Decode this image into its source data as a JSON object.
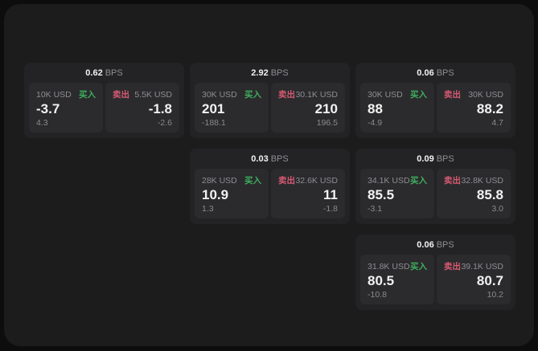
{
  "colors": {
    "buy": "#3fae5e",
    "sell": "#d65a73",
    "page_bg": "#0d0d0e",
    "panel_bg": "#1c1c1d",
    "card_bg": "#232325",
    "tile_bg": "#2b2b2d"
  },
  "labels": {
    "bps_suffix": "BPS",
    "buy_side": "买入",
    "sell_side": "卖出"
  },
  "cards": [
    {
      "col": 1,
      "row": 1,
      "bps": "0.62",
      "buy": {
        "amount": "10K USD",
        "price": "-3.7",
        "delta": "4.3"
      },
      "sell": {
        "amount": "5.5K USD",
        "price": "-1.8",
        "delta": "-2.6"
      }
    },
    {
      "col": 2,
      "row": 1,
      "bps": "2.92",
      "buy": {
        "amount": "30K USD",
        "price": "201",
        "delta": "-188.1"
      },
      "sell": {
        "amount": "30.1K USD",
        "price": "210",
        "delta": "196.5"
      }
    },
    {
      "col": 3,
      "row": 1,
      "bps": "0.06",
      "buy": {
        "amount": "30K USD",
        "price": "88",
        "delta": "-4.9"
      },
      "sell": {
        "amount": "30K USD",
        "price": "88.2",
        "delta": "4.7"
      }
    },
    {
      "col": 2,
      "row": 2,
      "bps": "0.03",
      "buy": {
        "amount": "28K USD",
        "price": "10.9",
        "delta": "1.3"
      },
      "sell": {
        "amount": "32.6K USD",
        "price": "11",
        "delta": "-1.8"
      }
    },
    {
      "col": 3,
      "row": 2,
      "bps": "0.09",
      "buy": {
        "amount": "34.1K USD",
        "price": "85.5",
        "delta": "-3.1"
      },
      "sell": {
        "amount": "32.8K USD",
        "price": "85.8",
        "delta": "3.0"
      }
    },
    {
      "col": 3,
      "row": 3,
      "bps": "0.06",
      "buy": {
        "amount": "31.8K USD",
        "price": "80.5",
        "delta": "-10.8"
      },
      "sell": {
        "amount": "39.1K USD",
        "price": "80.7",
        "delta": "10.2"
      }
    }
  ]
}
